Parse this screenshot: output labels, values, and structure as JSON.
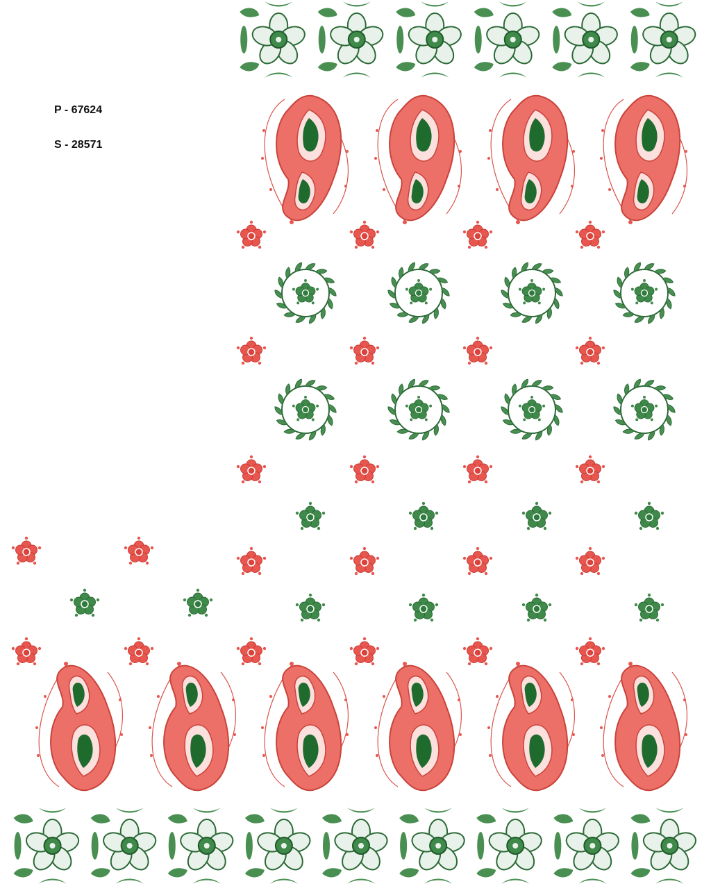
{
  "codes": [
    "P - 67624",
    "S - 28571"
  ]
}
